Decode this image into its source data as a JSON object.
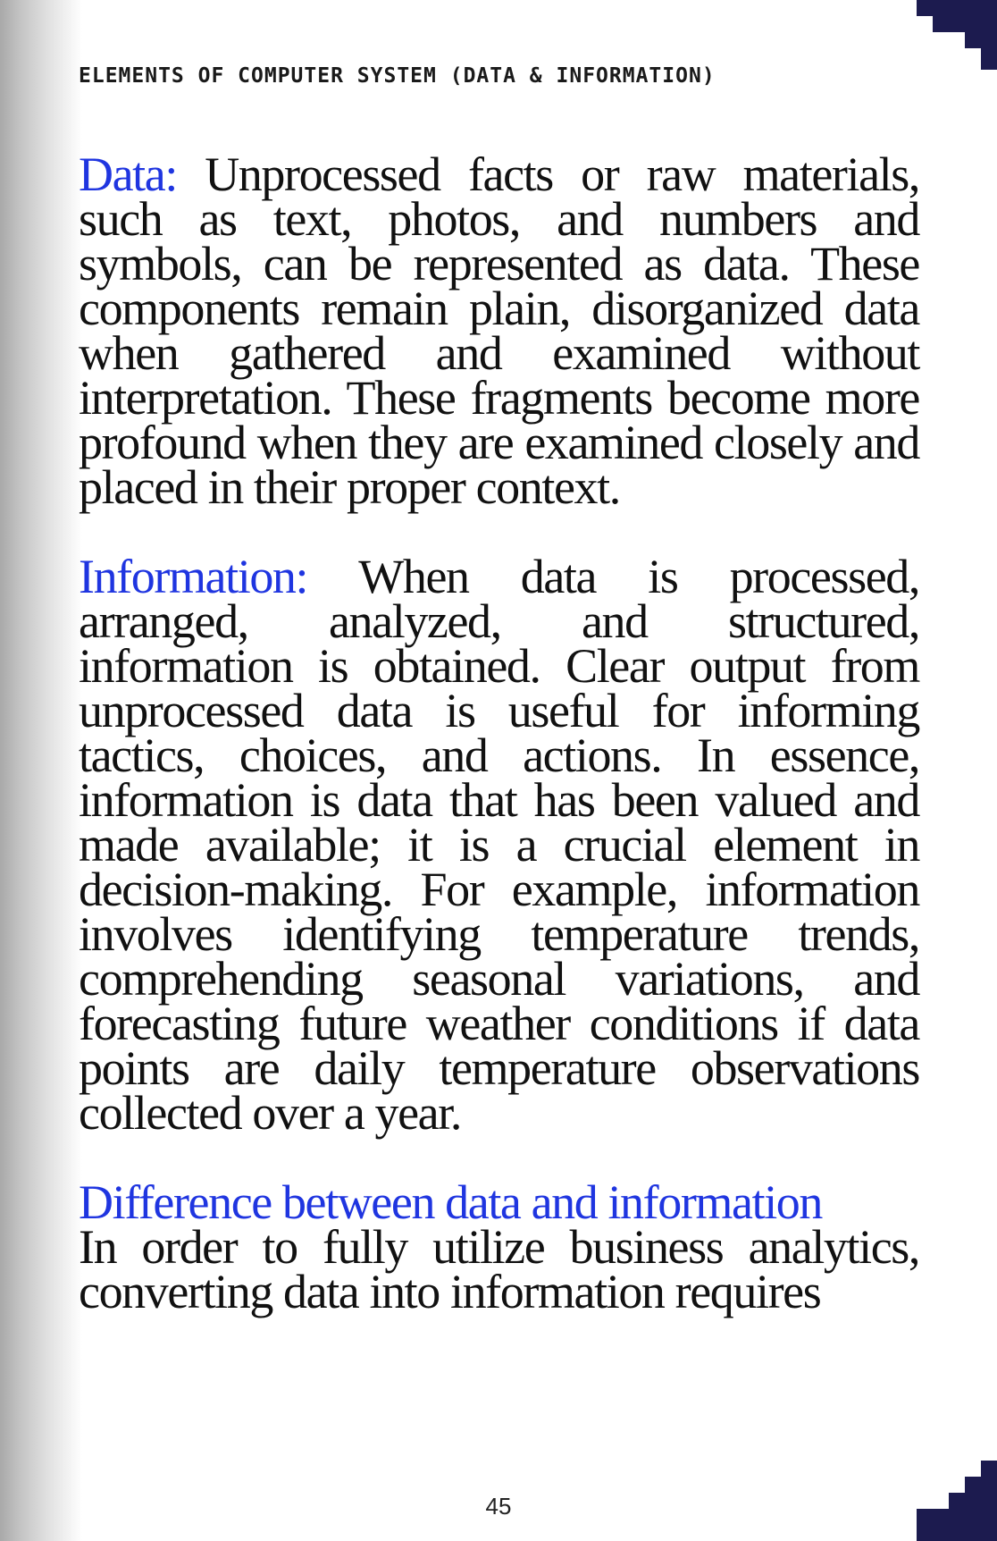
{
  "header": {
    "running_title": "ELEMENTS OF COMPUTER SYSTEM (DATA & INFORMATION)"
  },
  "sections": [
    {
      "term": "Data:",
      "text": "Unprocessed facts or raw materials, such as text, photos, and numbers and symbols, can be represented as data. These components remain plain, disorganized data when gathered and examined without interpretation. These fragments become more profound when they are examined closely and placed in their proper context."
    },
    {
      "term": "Information:",
      "text": "When data is processed, arranged, analyzed, and structured, information is obtained. Clear output from unprocessed data is useful for informing tactics, choices, and actions. In essence, information is data that has been valued and made available; it is a crucial element in decision-making. For example, information involves identifying temperature trends, comprehending seasonal variations, and forecasting future weather conditions if data points are daily temperature observations collected over a year."
    },
    {
      "heading": "Difference between data and information",
      "text": "In order to fully utilize business analytics, converting data into information requires"
    }
  ],
  "footer": {
    "page_number": "45"
  },
  "colors": {
    "accent": "#1f35e0",
    "corner_ornament": "#1c1b4f",
    "body_text": "#111111"
  }
}
